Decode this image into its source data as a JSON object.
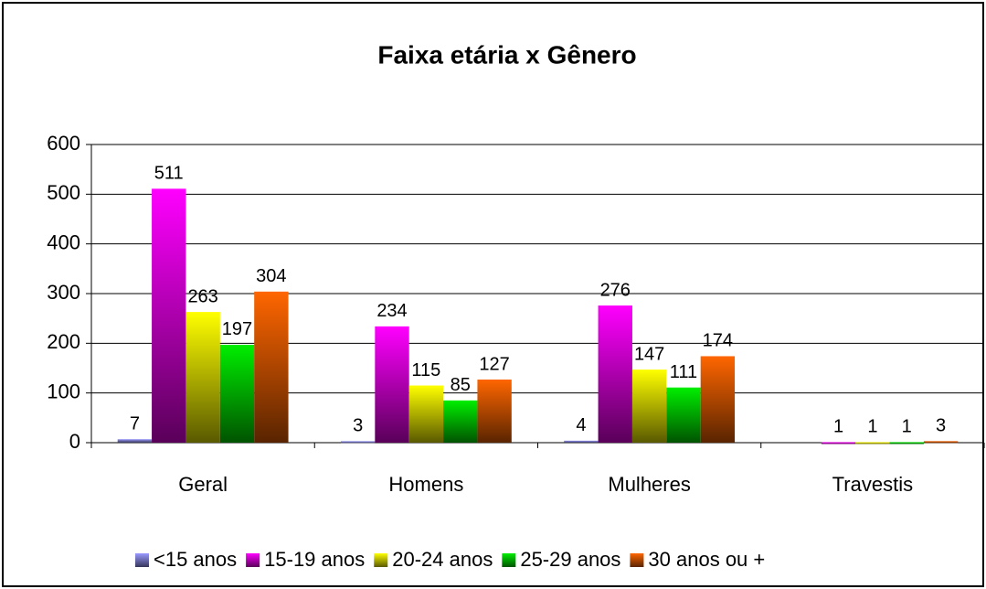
{
  "chart_data": {
    "type": "bar",
    "title": "Faixa etária x Gênero",
    "categories": [
      "Geral",
      "Homens",
      "Mulheres",
      "Travestis"
    ],
    "series": [
      {
        "name": "<15 anos",
        "color": "#9999ff",
        "values": [
          7,
          3,
          4,
          null
        ]
      },
      {
        "name": "15-19 anos",
        "color": "#ff00ff",
        "values": [
          511,
          234,
          276,
          1
        ]
      },
      {
        "name": "20-24 anos",
        "color": "#ffff00",
        "values": [
          263,
          115,
          147,
          1
        ]
      },
      {
        "name": "25-29 anos",
        "color": "#00ee00",
        "values": [
          197,
          85,
          111,
          1
        ]
      },
      {
        "name": "30 anos ou +",
        "color": "#ff6600",
        "values": [
          304,
          127,
          174,
          3
        ]
      }
    ],
    "ylim": [
      0,
      600
    ],
    "yticks": [
      0,
      100,
      200,
      300,
      400,
      500,
      600
    ],
    "grid": true,
    "legend": "bottom"
  }
}
